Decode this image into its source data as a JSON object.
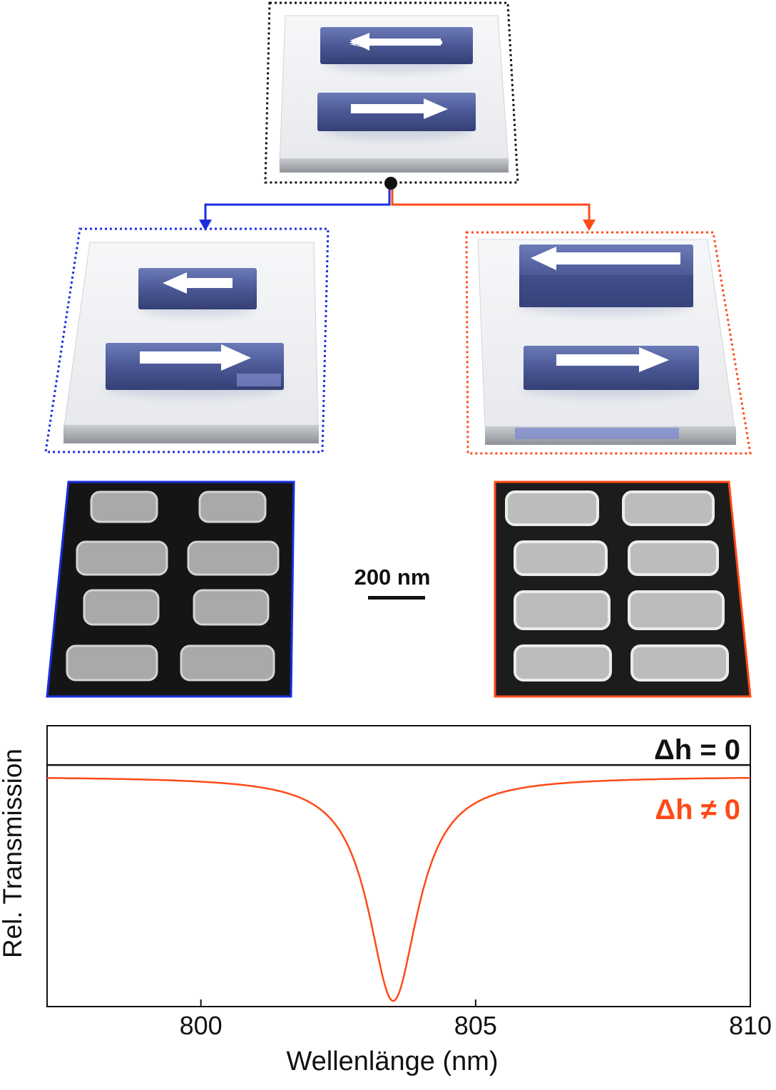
{
  "scale_bar": {
    "label": "200 nm"
  },
  "colors": {
    "reference": "#111111",
    "case_a": "#1a2ee0",
    "case_b": "#ff4a17",
    "bar_fill": "#4a5a9a"
  },
  "icons": [
    "left-arrow-icon",
    "right-arrow-icon"
  ],
  "chart_data": {
    "type": "line",
    "xlabel": "Wellenlänge (nm)",
    "ylabel": "Rel. Transmission",
    "xlim": [
      797.2,
      810
    ],
    "x_ticks": [
      "800",
      "805",
      "810"
    ],
    "y_ticks": [],
    "grid": false,
    "legend_placement": "top-right",
    "series": [
      {
        "name": "Δh = 0",
        "color": "#111111",
        "shape": "constant",
        "y": 0.86
      },
      {
        "name": "Δh ≠ 0",
        "color": "#ff4a17",
        "shape": "lorentzian-dip",
        "baseline": 0.82,
        "center": 803.5,
        "half_width": 0.55,
        "min": 0.02
      }
    ]
  }
}
